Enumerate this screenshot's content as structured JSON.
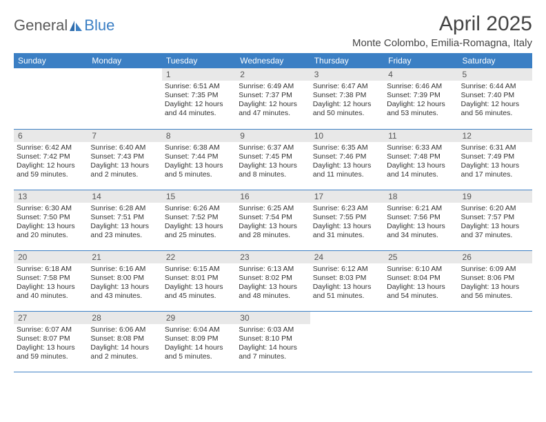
{
  "logo": {
    "part1": "General",
    "part2": "Blue"
  },
  "title": "April 2025",
  "location": "Monte Colombo, Emilia-Romagna, Italy",
  "weekdays": [
    "Sunday",
    "Monday",
    "Tuesday",
    "Wednesday",
    "Thursday",
    "Friday",
    "Saturday"
  ],
  "colors": {
    "header_bg": "#3b7fc4",
    "header_text": "#ffffff",
    "daynum_bg": "#e8e8e8",
    "body_bg": "#ffffff",
    "border": "#3b7fc4",
    "text": "#333333"
  },
  "typography": {
    "title_fontsize": 30,
    "location_fontsize": 15,
    "weekday_fontsize": 12,
    "daynum_fontsize": 12,
    "body_fontsize": 10.5,
    "logo_fontsize": 22
  },
  "grid": {
    "rows": 5,
    "cols": 7,
    "first_day_col": 2,
    "days_in_month": 30
  },
  "days": {
    "1": {
      "sunrise": "6:51 AM",
      "sunset": "7:35 PM",
      "daylight": "12 hours and 44 minutes."
    },
    "2": {
      "sunrise": "6:49 AM",
      "sunset": "7:37 PM",
      "daylight": "12 hours and 47 minutes."
    },
    "3": {
      "sunrise": "6:47 AM",
      "sunset": "7:38 PM",
      "daylight": "12 hours and 50 minutes."
    },
    "4": {
      "sunrise": "6:46 AM",
      "sunset": "7:39 PM",
      "daylight": "12 hours and 53 minutes."
    },
    "5": {
      "sunrise": "6:44 AM",
      "sunset": "7:40 PM",
      "daylight": "12 hours and 56 minutes."
    },
    "6": {
      "sunrise": "6:42 AM",
      "sunset": "7:42 PM",
      "daylight": "12 hours and 59 minutes."
    },
    "7": {
      "sunrise": "6:40 AM",
      "sunset": "7:43 PM",
      "daylight": "13 hours and 2 minutes."
    },
    "8": {
      "sunrise": "6:38 AM",
      "sunset": "7:44 PM",
      "daylight": "13 hours and 5 minutes."
    },
    "9": {
      "sunrise": "6:37 AM",
      "sunset": "7:45 PM",
      "daylight": "13 hours and 8 minutes."
    },
    "10": {
      "sunrise": "6:35 AM",
      "sunset": "7:46 PM",
      "daylight": "13 hours and 11 minutes."
    },
    "11": {
      "sunrise": "6:33 AM",
      "sunset": "7:48 PM",
      "daylight": "13 hours and 14 minutes."
    },
    "12": {
      "sunrise": "6:31 AM",
      "sunset": "7:49 PM",
      "daylight": "13 hours and 17 minutes."
    },
    "13": {
      "sunrise": "6:30 AM",
      "sunset": "7:50 PM",
      "daylight": "13 hours and 20 minutes."
    },
    "14": {
      "sunrise": "6:28 AM",
      "sunset": "7:51 PM",
      "daylight": "13 hours and 23 minutes."
    },
    "15": {
      "sunrise": "6:26 AM",
      "sunset": "7:52 PM",
      "daylight": "13 hours and 25 minutes."
    },
    "16": {
      "sunrise": "6:25 AM",
      "sunset": "7:54 PM",
      "daylight": "13 hours and 28 minutes."
    },
    "17": {
      "sunrise": "6:23 AM",
      "sunset": "7:55 PM",
      "daylight": "13 hours and 31 minutes."
    },
    "18": {
      "sunrise": "6:21 AM",
      "sunset": "7:56 PM",
      "daylight": "13 hours and 34 minutes."
    },
    "19": {
      "sunrise": "6:20 AM",
      "sunset": "7:57 PM",
      "daylight": "13 hours and 37 minutes."
    },
    "20": {
      "sunrise": "6:18 AM",
      "sunset": "7:58 PM",
      "daylight": "13 hours and 40 minutes."
    },
    "21": {
      "sunrise": "6:16 AM",
      "sunset": "8:00 PM",
      "daylight": "13 hours and 43 minutes."
    },
    "22": {
      "sunrise": "6:15 AM",
      "sunset": "8:01 PM",
      "daylight": "13 hours and 45 minutes."
    },
    "23": {
      "sunrise": "6:13 AM",
      "sunset": "8:02 PM",
      "daylight": "13 hours and 48 minutes."
    },
    "24": {
      "sunrise": "6:12 AM",
      "sunset": "8:03 PM",
      "daylight": "13 hours and 51 minutes."
    },
    "25": {
      "sunrise": "6:10 AM",
      "sunset": "8:04 PM",
      "daylight": "13 hours and 54 minutes."
    },
    "26": {
      "sunrise": "6:09 AM",
      "sunset": "8:06 PM",
      "daylight": "13 hours and 56 minutes."
    },
    "27": {
      "sunrise": "6:07 AM",
      "sunset": "8:07 PM",
      "daylight": "13 hours and 59 minutes."
    },
    "28": {
      "sunrise": "6:06 AM",
      "sunset": "8:08 PM",
      "daylight": "14 hours and 2 minutes."
    },
    "29": {
      "sunrise": "6:04 AM",
      "sunset": "8:09 PM",
      "daylight": "14 hours and 5 minutes."
    },
    "30": {
      "sunrise": "6:03 AM",
      "sunset": "8:10 PM",
      "daylight": "14 hours and 7 minutes."
    }
  },
  "labels": {
    "sunrise": "Sunrise: ",
    "sunset": "Sunset: ",
    "daylight": "Daylight: "
  }
}
